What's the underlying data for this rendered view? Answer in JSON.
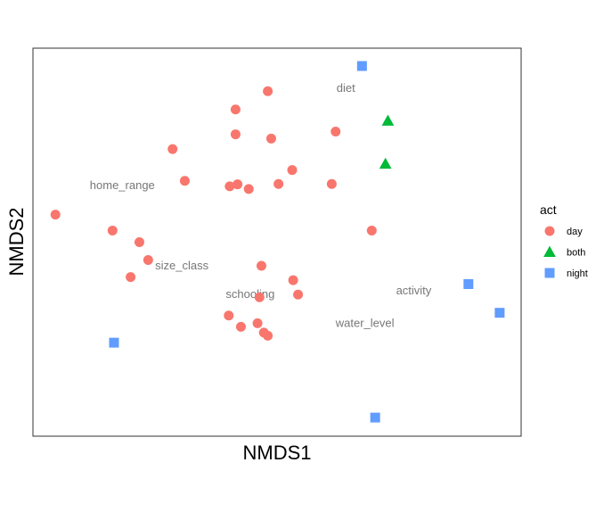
{
  "chart_data": {
    "type": "scatter",
    "title": "",
    "xlabel": "NMDS1",
    "ylabel": "NMDS2",
    "xlim": [
      0,
      100
    ],
    "ylim": [
      0,
      100
    ],
    "axis_ticks": "none",
    "grid": false,
    "legend": {
      "title": "act",
      "placement": "right",
      "entries": [
        {
          "label": "day",
          "shape": "circle",
          "color": "#F8766D"
        },
        {
          "label": "both",
          "shape": "triangle",
          "color": "#00BA38"
        },
        {
          "label": "night",
          "shape": "square",
          "color": "#619CFF"
        }
      ]
    },
    "series": [
      {
        "name": "day",
        "color": "#F8766D",
        "shape": "circle",
        "points": [
          [
            4.6,
            57.1
          ],
          [
            16.3,
            53.0
          ],
          [
            20.0,
            41.0
          ],
          [
            21.8,
            50.0
          ],
          [
            23.6,
            45.4
          ],
          [
            28.6,
            74.0
          ],
          [
            31.1,
            65.8
          ],
          [
            40.1,
            31.1
          ],
          [
            40.3,
            64.4
          ],
          [
            41.5,
            77.8
          ],
          [
            41.5,
            84.2
          ],
          [
            41.9,
            64.9
          ],
          [
            42.6,
            28.2
          ],
          [
            44.2,
            63.7
          ],
          [
            46.0,
            29.1
          ],
          [
            46.4,
            35.8
          ],
          [
            46.8,
            43.9
          ],
          [
            47.3,
            26.7
          ],
          [
            48.1,
            25.9
          ],
          [
            48.1,
            88.9
          ],
          [
            48.8,
            76.7
          ],
          [
            50.3,
            65.0
          ],
          [
            53.1,
            68.6
          ],
          [
            53.3,
            40.2
          ],
          [
            54.3,
            36.5
          ],
          [
            61.2,
            65.0
          ],
          [
            62.0,
            78.5
          ],
          [
            69.4,
            53.0
          ]
        ]
      },
      {
        "name": "both",
        "color": "#00BA38",
        "shape": "triangle",
        "points": [
          [
            72.7,
            81.3
          ],
          [
            72.2,
            70.2
          ]
        ]
      },
      {
        "name": "night",
        "color": "#619CFF",
        "shape": "square",
        "points": [
          [
            67.4,
            95.4
          ],
          [
            16.6,
            24.1
          ],
          [
            89.2,
            39.2
          ],
          [
            95.6,
            31.8
          ],
          [
            70.1,
            4.8
          ]
        ]
      }
    ],
    "annotations": [
      {
        "text": "diet",
        "x": 64.1,
        "y": 89.6
      },
      {
        "text": "home_range",
        "x": 18.3,
        "y": 64.6
      },
      {
        "text": "size_class",
        "x": 30.5,
        "y": 43.9
      },
      {
        "text": "schooling",
        "x": 44.5,
        "y": 36.6
      },
      {
        "text": "activity",
        "x": 78.0,
        "y": 37.5
      },
      {
        "text": "water_level",
        "x": 68.0,
        "y": 29.1
      }
    ]
  }
}
